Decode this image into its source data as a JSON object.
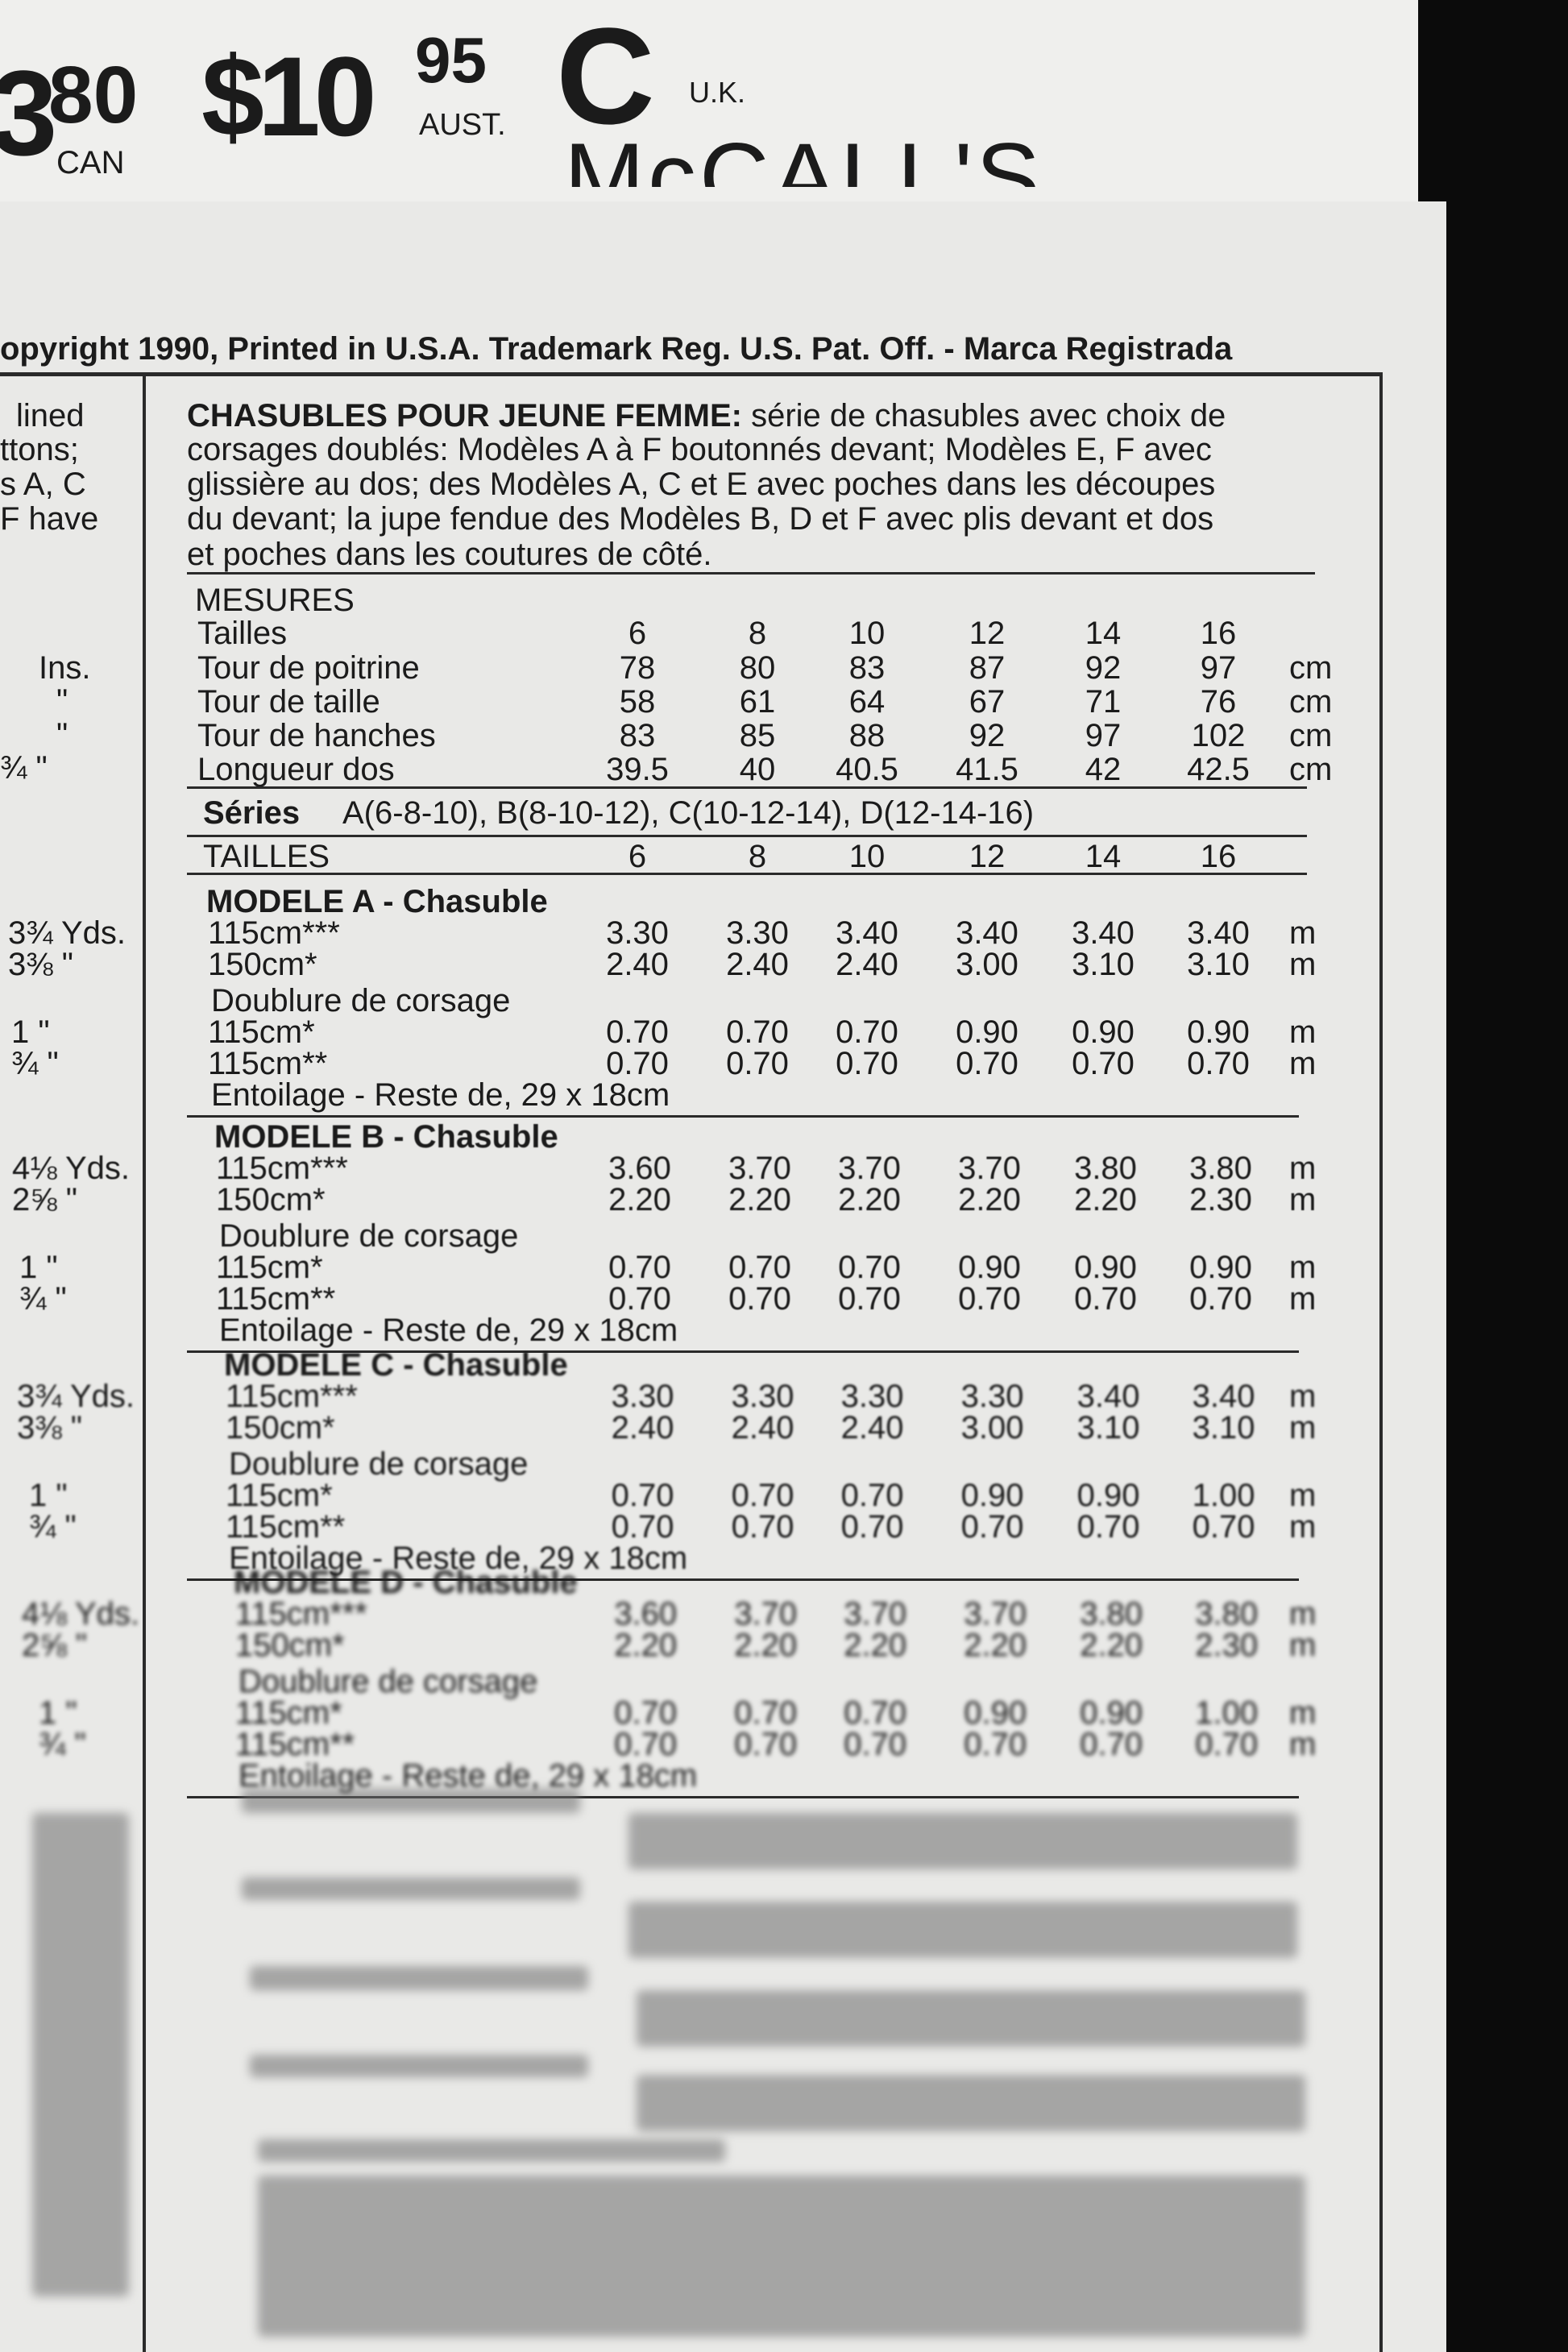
{
  "header": {
    "can_cut": "3",
    "can_price": "80",
    "can_label": "CAN",
    "aust_price": "$10",
    "aust_cents": "95",
    "aust_label": "AUST.",
    "uk_price": "C",
    "uk_label": "U.K.",
    "brand": "McCALL'S"
  },
  "copyright": "opyright 1990, Printed in U.S.A. Trademark Reg. U.S. Pat. Off. - Marca Registrada",
  "left_column": [
    "lined",
    "ttons;",
    "s A, C",
    "F have"
  ],
  "left_measures": [
    "Ins.",
    "\"",
    "\"",
    "¾ \""
  ],
  "description": {
    "heading": "CHASUBLES POUR JEUNE FEMME:",
    "lines": [
      " série de chasubles avec choix de",
      "corsages doublés: Modèles A à F boutonnés devant; Modèles E, F avec",
      "glissière au dos; des Modèles A, C et E avec poches dans les découpes",
      "du devant; la jupe fendue des Modèles B, D et F avec plis devant et dos",
      "et poches dans les coutures de côté."
    ]
  },
  "measures": {
    "title": "MESURES",
    "sizes_label": "Tailles",
    "sizes": [
      "6",
      "8",
      "10",
      "12",
      "14",
      "16"
    ],
    "rows": [
      {
        "label": "Tour de poitrine",
        "values": [
          "78",
          "80",
          "83",
          "87",
          "92",
          "97"
        ],
        "unit": "cm"
      },
      {
        "label": "Tour de taille",
        "values": [
          "58",
          "61",
          "64",
          "67",
          "71",
          "76"
        ],
        "unit": "cm"
      },
      {
        "label": "Tour de hanches",
        "values": [
          "83",
          "85",
          "88",
          "92",
          "97",
          "102"
        ],
        "unit": "cm"
      },
      {
        "label": "Longueur dos",
        "values": [
          "39.5",
          "40",
          "40.5",
          "41.5",
          "42",
          "42.5"
        ],
        "unit": "cm"
      }
    ]
  },
  "series": {
    "label": "Séries",
    "text": "A(6-8-10), B(8-10-12), C(10-12-14), D(12-14-16)"
  },
  "sizes_row": {
    "label": "TAILLES",
    "sizes": [
      "6",
      "8",
      "10",
      "12",
      "14",
      "16"
    ]
  },
  "models": [
    {
      "title": "MODELE A - Chasuble",
      "yardage": [
        "3¾ Yds.",
        "3⅜ \"",
        "1 \"",
        "¾ \""
      ],
      "rows": [
        {
          "label": "115cm***",
          "values": [
            "3.30",
            "3.30",
            "3.40",
            "3.40",
            "3.40",
            "3.40"
          ],
          "unit": "m"
        },
        {
          "label": "150cm*",
          "values": [
            "2.40",
            "2.40",
            "2.40",
            "3.00",
            "3.10",
            "3.10"
          ],
          "unit": "m"
        },
        {
          "label": "Doublure de corsage"
        },
        {
          "label": "115cm*",
          "values": [
            "0.70",
            "0.70",
            "0.70",
            "0.90",
            "0.90",
            "0.90"
          ],
          "unit": "m"
        },
        {
          "label": "115cm**",
          "values": [
            "0.70",
            "0.70",
            "0.70",
            "0.70",
            "0.70",
            "0.70"
          ],
          "unit": "m"
        },
        {
          "label": "Entoilage - Reste de, 29 x 18cm"
        }
      ]
    },
    {
      "title": "MODELE B - Chasuble",
      "yardage": [
        "4⅛ Yds.",
        "2⅝ \"",
        "1 \"",
        "¾ \""
      ],
      "rows": [
        {
          "label": "115cm***",
          "values": [
            "3.60",
            "3.70",
            "3.70",
            "3.70",
            "3.80",
            "3.80"
          ],
          "unit": "m"
        },
        {
          "label": "150cm*",
          "values": [
            "2.20",
            "2.20",
            "2.20",
            "2.20",
            "2.20",
            "2.30"
          ],
          "unit": "m"
        },
        {
          "label": "Doublure de corsage"
        },
        {
          "label": "115cm*",
          "values": [
            "0.70",
            "0.70",
            "0.70",
            "0.90",
            "0.90",
            "0.90"
          ],
          "unit": "m"
        },
        {
          "label": "115cm**",
          "values": [
            "0.70",
            "0.70",
            "0.70",
            "0.70",
            "0.70",
            "0.70"
          ],
          "unit": "m"
        },
        {
          "label": "Entoilage - Reste de, 29 x 18cm"
        }
      ]
    },
    {
      "title": "MODELE C - Chasuble",
      "yardage": [
        "3¾ Yds.",
        "3⅜ \"",
        "1 \"",
        "¾ \""
      ],
      "rows": [
        {
          "label": "115cm***",
          "values": [
            "3.30",
            "3.30",
            "3.30",
            "3.30",
            "3.40",
            "3.40"
          ],
          "unit": "m"
        },
        {
          "label": "150cm*",
          "values": [
            "2.40",
            "2.40",
            "2.40",
            "3.00",
            "3.10",
            "3.10"
          ],
          "unit": "m"
        },
        {
          "label": "Doublure de corsage"
        },
        {
          "label": "115cm*",
          "values": [
            "0.70",
            "0.70",
            "0.70",
            "0.90",
            "0.90",
            "1.00"
          ],
          "unit": "m"
        },
        {
          "label": "115cm**",
          "values": [
            "0.70",
            "0.70",
            "0.70",
            "0.70",
            "0.70",
            "0.70"
          ],
          "unit": "m"
        },
        {
          "label": "Entoilage - Reste de, 29 x 18cm"
        }
      ]
    },
    {
      "title": "MODELE D - Chasuble",
      "yardage": [
        "4⅛ Yds.",
        "2⅝ \"",
        "1 \"",
        "¾ \""
      ],
      "rows": [
        {
          "label": "115cm***",
          "values": [
            "3.60",
            "3.70",
            "3.70",
            "3.70",
            "3.80",
            "3.80"
          ],
          "unit": "m"
        },
        {
          "label": "150cm*",
          "values": [
            "2.20",
            "2.20",
            "2.20",
            "2.20",
            "2.20",
            "2.30"
          ],
          "unit": "m"
        },
        {
          "label": "Doublure de corsage"
        },
        {
          "label": "115cm*",
          "values": [
            "0.70",
            "0.70",
            "0.70",
            "0.90",
            "0.90",
            "1.00"
          ],
          "unit": "m"
        },
        {
          "label": "115cm**",
          "values": [
            "0.70",
            "0.70",
            "0.70",
            "0.70",
            "0.70",
            "0.70"
          ],
          "unit": "m"
        },
        {
          "label": "Entoilage - Reste de, 29 x 18cm"
        }
      ]
    }
  ]
}
